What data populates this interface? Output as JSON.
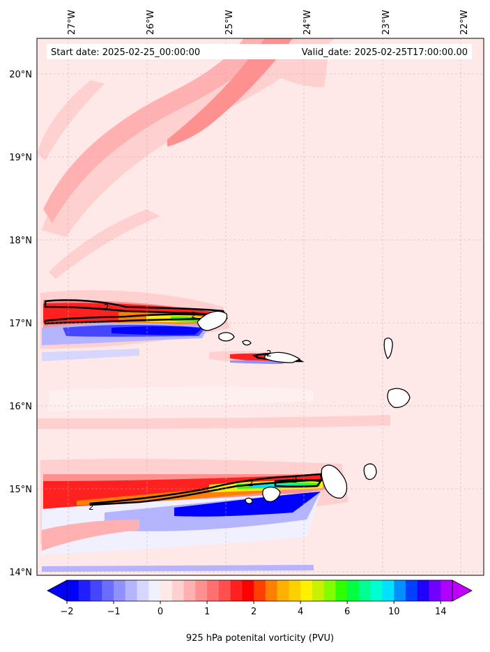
{
  "header": {
    "start_label": "Start date: 2025-02-25_00:00:00",
    "valid_label": "Valid_date: 2025-02-25T17:00:00.00"
  },
  "axes": {
    "lon_ticks": [
      "27°W",
      "26°W",
      "25°W",
      "24°W",
      "23°W",
      "22°W"
    ],
    "lat_ticks": [
      "20°N",
      "19°N",
      "18°N",
      "17°N",
      "16°N",
      "15°N",
      "14°N"
    ]
  },
  "colorbar": {
    "label": "925 hPa potenital vorticity (PVU)",
    "ticks": [
      "−2",
      "−1",
      "0",
      "1",
      "2",
      "4",
      "6",
      "10",
      "14"
    ],
    "colors": [
      "#0000ff",
      "#2020ff",
      "#4646ff",
      "#6c6cff",
      "#9090ff",
      "#b4b4ff",
      "#d6d6ff",
      "#f0f0ff",
      "#ffe8e8",
      "#ffd0d0",
      "#ffb0b0",
      "#ff9090",
      "#ff7070",
      "#ff5050",
      "#ff2020",
      "#ff0000",
      "#ff4000",
      "#ff8000",
      "#ffb000",
      "#ffd000",
      "#fff000",
      "#c8f000",
      "#80ff00",
      "#30ff00",
      "#00ff40",
      "#00ff90",
      "#00ffd0",
      "#00e0ff",
      "#0090ff",
      "#0040ff",
      "#2000ff",
      "#7000ff",
      "#b000ff"
    ],
    "under_color": "#0000ff",
    "over_color": "#c000ff"
  },
  "contour_labels": [
    "2",
    "2",
    "2",
    "2",
    "2",
    "2"
  ],
  "map": {
    "region": "Cape Verde",
    "lon_range": [
      -27.4,
      -21.9
    ],
    "lat_range": [
      13.95,
      20.45
    ],
    "contour_level": 2
  }
}
